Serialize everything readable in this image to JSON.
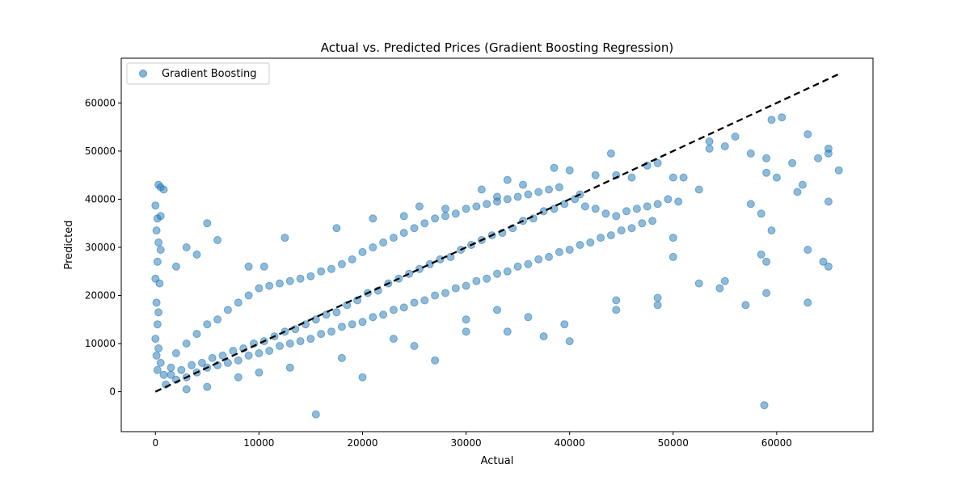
{
  "chart_data": {
    "type": "scatter",
    "title": "Actual vs. Predicted Prices (Gradient Boosting Regression)",
    "xlabel": "Actual",
    "ylabel": "Predicted",
    "xlim": [
      -3300,
      69300
    ],
    "ylim": [
      -8300,
      69300
    ],
    "x_ticks": [
      0,
      10000,
      20000,
      30000,
      40000,
      50000,
      60000
    ],
    "y_ticks": [
      0,
      10000,
      20000,
      30000,
      40000,
      50000,
      60000
    ],
    "legend": {
      "placement": "top-left",
      "entries": [
        "Gradient Boosting"
      ]
    },
    "grid": false,
    "colors": {
      "points": "#1f77b4",
      "reference_line": "#000000"
    },
    "reference_line": {
      "style": "dashed",
      "from": [
        0,
        0
      ],
      "to": [
        66000,
        66000
      ]
    },
    "series": [
      {
        "name": "Gradient Boosting",
        "points": [
          [
            0,
            38700
          ],
          [
            300,
            43000
          ],
          [
            500,
            42500
          ],
          [
            800,
            42000
          ],
          [
            200,
            36000
          ],
          [
            500,
            36500
          ],
          [
            100,
            33500
          ],
          [
            300,
            31000
          ],
          [
            200,
            27000
          ],
          [
            500,
            29500
          ],
          [
            0,
            23500
          ],
          [
            400,
            22500
          ],
          [
            100,
            18500
          ],
          [
            300,
            16500
          ],
          [
            200,
            14000
          ],
          [
            0,
            11000
          ],
          [
            300,
            9000
          ],
          [
            100,
            7500
          ],
          [
            500,
            6000
          ],
          [
            200,
            4500
          ],
          [
            800,
            3500
          ],
          [
            1500,
            5000
          ],
          [
            2000,
            26000
          ],
          [
            3000,
            30000
          ],
          [
            4000,
            28500
          ],
          [
            5000,
            35000
          ],
          [
            6000,
            31500
          ],
          [
            9000,
            26000
          ],
          [
            10500,
            26000
          ],
          [
            12500,
            32000
          ],
          [
            17500,
            34000
          ],
          [
            21000,
            36000
          ],
          [
            24000,
            36500
          ],
          [
            25500,
            38500
          ],
          [
            28000,
            38000
          ],
          [
            31500,
            42000
          ],
          [
            33000,
            40500
          ],
          [
            34000,
            44000
          ],
          [
            35500,
            43000
          ],
          [
            38500,
            46500
          ],
          [
            40000,
            46000
          ],
          [
            41000,
            41000
          ],
          [
            42500,
            45000
          ],
          [
            44000,
            49500
          ],
          [
            44500,
            45000
          ],
          [
            46000,
            44500
          ],
          [
            47500,
            47000
          ],
          [
            48500,
            47500
          ],
          [
            50000,
            44500
          ],
          [
            51000,
            44500
          ],
          [
            52500,
            42000
          ],
          [
            53500,
            50500
          ],
          [
            53500,
            52000
          ],
          [
            55000,
            51000
          ],
          [
            56000,
            53000
          ],
          [
            57500,
            49500
          ],
          [
            59000,
            48500
          ],
          [
            60500,
            57000
          ],
          [
            59500,
            56500
          ],
          [
            61500,
            47500
          ],
          [
            63000,
            53500
          ],
          [
            64000,
            48500
          ],
          [
            65000,
            49500
          ],
          [
            65000,
            50500
          ],
          [
            66000,
            46000
          ],
          [
            59000,
            45500
          ],
          [
            60000,
            44500
          ],
          [
            62500,
            43000
          ],
          [
            58500,
            37000
          ],
          [
            59500,
            33500
          ],
          [
            62000,
            41500
          ],
          [
            65000,
            39500
          ],
          [
            57500,
            39000
          ],
          [
            58500,
            28500
          ],
          [
            59000,
            27000
          ],
          [
            63000,
            29500
          ],
          [
            64500,
            27000
          ],
          [
            65000,
            26000
          ],
          [
            63000,
            18500
          ],
          [
            59000,
            20500
          ],
          [
            57000,
            18000
          ],
          [
            54500,
            21500
          ],
          [
            55000,
            23000
          ],
          [
            52500,
            22500
          ],
          [
            50000,
            32000
          ],
          [
            50000,
            28000
          ],
          [
            48500,
            19500
          ],
          [
            48500,
            18000
          ],
          [
            44500,
            17000
          ],
          [
            44500,
            19000
          ],
          [
            40000,
            10500
          ],
          [
            39500,
            14000
          ],
          [
            37500,
            11500
          ],
          [
            34000,
            12500
          ],
          [
            36000,
            15500
          ],
          [
            33000,
            17000
          ],
          [
            30000,
            12500
          ],
          [
            30000,
            15000
          ],
          [
            27000,
            6500
          ],
          [
            25000,
            9500
          ],
          [
            23000,
            11000
          ],
          [
            20000,
            3000
          ],
          [
            18000,
            7000
          ],
          [
            13000,
            5000
          ],
          [
            10000,
            4000
          ],
          [
            8000,
            3000
          ],
          [
            5000,
            1000
          ],
          [
            3000,
            500
          ],
          [
            15500,
            -4700
          ],
          [
            58800,
            -2800
          ],
          [
            1000,
            1500
          ],
          [
            2000,
            2500
          ],
          [
            1500,
            3500
          ],
          [
            2500,
            4500
          ],
          [
            3500,
            5500
          ],
          [
            4500,
            6000
          ],
          [
            5500,
            7000
          ],
          [
            6500,
            7500
          ],
          [
            7500,
            8500
          ],
          [
            8500,
            9000
          ],
          [
            9500,
            10000
          ],
          [
            10500,
            10500
          ],
          [
            11500,
            11500
          ],
          [
            12500,
            12500
          ],
          [
            13500,
            13000
          ],
          [
            14500,
            14000
          ],
          [
            15500,
            15000
          ],
          [
            16500,
            16000
          ],
          [
            17500,
            16500
          ],
          [
            18500,
            18000
          ],
          [
            19500,
            19000
          ],
          [
            20500,
            20500
          ],
          [
            21500,
            21000
          ],
          [
            22500,
            22500
          ],
          [
            23500,
            23500
          ],
          [
            24500,
            24500
          ],
          [
            25500,
            25500
          ],
          [
            26500,
            26500
          ],
          [
            27500,
            27500
          ],
          [
            28500,
            28000
          ],
          [
            29500,
            29500
          ],
          [
            30500,
            30500
          ],
          [
            31500,
            31500
          ],
          [
            32500,
            32500
          ],
          [
            33500,
            33000
          ],
          [
            34500,
            34000
          ],
          [
            35500,
            35500
          ],
          [
            36500,
            36000
          ],
          [
            37500,
            37500
          ],
          [
            38500,
            38000
          ],
          [
            39500,
            39000
          ],
          [
            40500,
            40000
          ],
          [
            41500,
            38500
          ],
          [
            42500,
            38000
          ],
          [
            43500,
            37000
          ],
          [
            44500,
            36500
          ],
          [
            45500,
            37500
          ],
          [
            46500,
            38000
          ],
          [
            47500,
            38500
          ],
          [
            48500,
            39000
          ],
          [
            49500,
            40000
          ],
          [
            50500,
            39500
          ],
          [
            2000,
            8000
          ],
          [
            3000,
            10000
          ],
          [
            4000,
            12000
          ],
          [
            5000,
            14000
          ],
          [
            6000,
            15000
          ],
          [
            7000,
            17000
          ],
          [
            8000,
            18500
          ],
          [
            9000,
            20000
          ],
          [
            10000,
            21500
          ],
          [
            11000,
            22000
          ],
          [
            12000,
            22500
          ],
          [
            13000,
            23000
          ],
          [
            14000,
            23500
          ],
          [
            15000,
            24000
          ],
          [
            16000,
            25000
          ],
          [
            17000,
            25500
          ],
          [
            18000,
            26500
          ],
          [
            19000,
            27500
          ],
          [
            20000,
            29000
          ],
          [
            21000,
            30000
          ],
          [
            22000,
            31000
          ],
          [
            23000,
            32000
          ],
          [
            24000,
            33000
          ],
          [
            25000,
            34000
          ],
          [
            26000,
            35000
          ],
          [
            27000,
            36000
          ],
          [
            28000,
            36500
          ],
          [
            29000,
            37000
          ],
          [
            30000,
            38000
          ],
          [
            31000,
            38500
          ],
          [
            32000,
            39000
          ],
          [
            33000,
            39500
          ],
          [
            34000,
            40000
          ],
          [
            35000,
            40500
          ],
          [
            36000,
            41000
          ],
          [
            37000,
            41500
          ],
          [
            38000,
            42000
          ],
          [
            39000,
            42500
          ],
          [
            3000,
            3000
          ],
          [
            4000,
            4000
          ],
          [
            5000,
            5000
          ],
          [
            6000,
            5500
          ],
          [
            7000,
            6000
          ],
          [
            8000,
            6500
          ],
          [
            9000,
            7500
          ],
          [
            10000,
            8000
          ],
          [
            11000,
            8500
          ],
          [
            12000,
            9500
          ],
          [
            13000,
            10000
          ],
          [
            14000,
            10500
          ],
          [
            15000,
            11000
          ],
          [
            16000,
            12000
          ],
          [
            17000,
            12500
          ],
          [
            18000,
            13500
          ],
          [
            19000,
            14000
          ],
          [
            20000,
            14500
          ],
          [
            21000,
            15500
          ],
          [
            22000,
            16000
          ],
          [
            23000,
            17000
          ],
          [
            24000,
            17500
          ],
          [
            25000,
            18500
          ],
          [
            26000,
            19000
          ],
          [
            27000,
            20000
          ],
          [
            28000,
            20500
          ],
          [
            29000,
            21500
          ],
          [
            30000,
            22000
          ],
          [
            31000,
            23000
          ],
          [
            32000,
            23500
          ],
          [
            33000,
            24500
          ],
          [
            34000,
            25000
          ],
          [
            35000,
            26000
          ],
          [
            36000,
            26500
          ],
          [
            37000,
            27500
          ],
          [
            38000,
            28000
          ],
          [
            39000,
            29000
          ],
          [
            40000,
            29500
          ],
          [
            41000,
            30500
          ],
          [
            42000,
            31000
          ],
          [
            43000,
            32000
          ],
          [
            44000,
            32500
          ],
          [
            45000,
            33500
          ],
          [
            46000,
            34000
          ],
          [
            47000,
            35000
          ],
          [
            48000,
            35500
          ]
        ]
      }
    ]
  }
}
